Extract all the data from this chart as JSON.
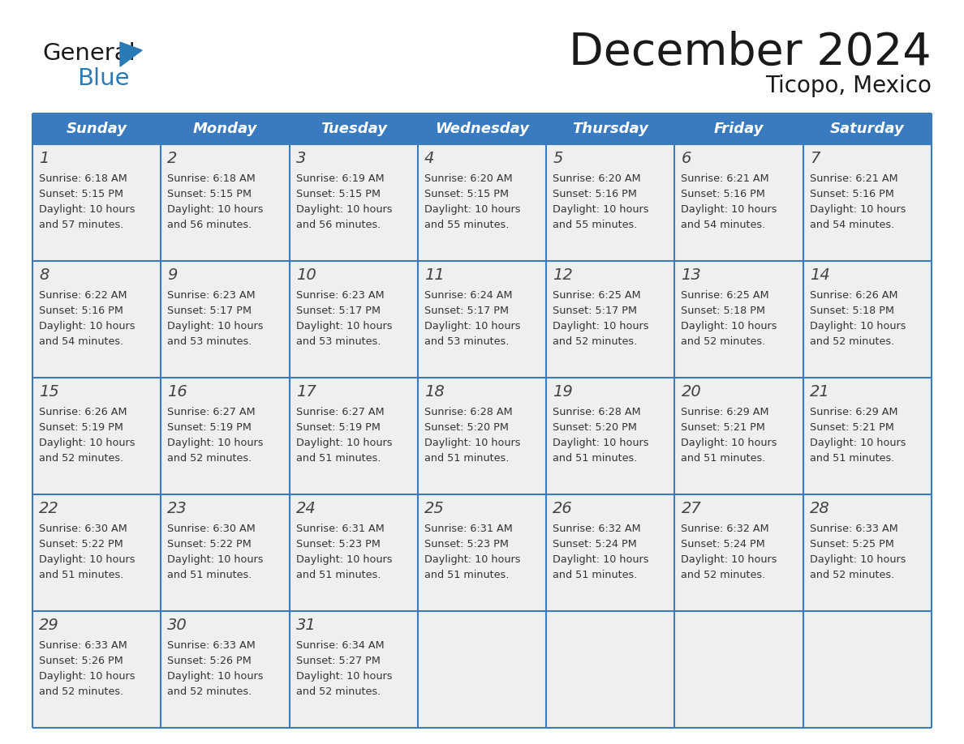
{
  "title": "December 2024",
  "subtitle": "Ticopo, Mexico",
  "header_color": "#3a7abf",
  "header_text_color": "#ffffff",
  "cell_bg_color": "#efefef",
  "border_color": "#3a7abf",
  "text_color": "#333333",
  "logo_black": "#1a1a1a",
  "logo_blue": "#2a7ab5",
  "days_of_week": [
    "Sunday",
    "Monday",
    "Tuesday",
    "Wednesday",
    "Thursday",
    "Friday",
    "Saturday"
  ],
  "weeks": [
    [
      {
        "day": 1,
        "sunrise": "6:18 AM",
        "sunset": "5:15 PM",
        "daylight": "10 hours and 57 minutes."
      },
      {
        "day": 2,
        "sunrise": "6:18 AM",
        "sunset": "5:15 PM",
        "daylight": "10 hours and 56 minutes."
      },
      {
        "day": 3,
        "sunrise": "6:19 AM",
        "sunset": "5:15 PM",
        "daylight": "10 hours and 56 minutes."
      },
      {
        "day": 4,
        "sunrise": "6:20 AM",
        "sunset": "5:15 PM",
        "daylight": "10 hours and 55 minutes."
      },
      {
        "day": 5,
        "sunrise": "6:20 AM",
        "sunset": "5:16 PM",
        "daylight": "10 hours and 55 minutes."
      },
      {
        "day": 6,
        "sunrise": "6:21 AM",
        "sunset": "5:16 PM",
        "daylight": "10 hours and 54 minutes."
      },
      {
        "day": 7,
        "sunrise": "6:21 AM",
        "sunset": "5:16 PM",
        "daylight": "10 hours and 54 minutes."
      }
    ],
    [
      {
        "day": 8,
        "sunrise": "6:22 AM",
        "sunset": "5:16 PM",
        "daylight": "10 hours and 54 minutes."
      },
      {
        "day": 9,
        "sunrise": "6:23 AM",
        "sunset": "5:17 PM",
        "daylight": "10 hours and 53 minutes."
      },
      {
        "day": 10,
        "sunrise": "6:23 AM",
        "sunset": "5:17 PM",
        "daylight": "10 hours and 53 minutes."
      },
      {
        "day": 11,
        "sunrise": "6:24 AM",
        "sunset": "5:17 PM",
        "daylight": "10 hours and 53 minutes."
      },
      {
        "day": 12,
        "sunrise": "6:25 AM",
        "sunset": "5:17 PM",
        "daylight": "10 hours and 52 minutes."
      },
      {
        "day": 13,
        "sunrise": "6:25 AM",
        "sunset": "5:18 PM",
        "daylight": "10 hours and 52 minutes."
      },
      {
        "day": 14,
        "sunrise": "6:26 AM",
        "sunset": "5:18 PM",
        "daylight": "10 hours and 52 minutes."
      }
    ],
    [
      {
        "day": 15,
        "sunrise": "6:26 AM",
        "sunset": "5:19 PM",
        "daylight": "10 hours and 52 minutes."
      },
      {
        "day": 16,
        "sunrise": "6:27 AM",
        "sunset": "5:19 PM",
        "daylight": "10 hours and 52 minutes."
      },
      {
        "day": 17,
        "sunrise": "6:27 AM",
        "sunset": "5:19 PM",
        "daylight": "10 hours and 51 minutes."
      },
      {
        "day": 18,
        "sunrise": "6:28 AM",
        "sunset": "5:20 PM",
        "daylight": "10 hours and 51 minutes."
      },
      {
        "day": 19,
        "sunrise": "6:28 AM",
        "sunset": "5:20 PM",
        "daylight": "10 hours and 51 minutes."
      },
      {
        "day": 20,
        "sunrise": "6:29 AM",
        "sunset": "5:21 PM",
        "daylight": "10 hours and 51 minutes."
      },
      {
        "day": 21,
        "sunrise": "6:29 AM",
        "sunset": "5:21 PM",
        "daylight": "10 hours and 51 minutes."
      }
    ],
    [
      {
        "day": 22,
        "sunrise": "6:30 AM",
        "sunset": "5:22 PM",
        "daylight": "10 hours and 51 minutes."
      },
      {
        "day": 23,
        "sunrise": "6:30 AM",
        "sunset": "5:22 PM",
        "daylight": "10 hours and 51 minutes."
      },
      {
        "day": 24,
        "sunrise": "6:31 AM",
        "sunset": "5:23 PM",
        "daylight": "10 hours and 51 minutes."
      },
      {
        "day": 25,
        "sunrise": "6:31 AM",
        "sunset": "5:23 PM",
        "daylight": "10 hours and 51 minutes."
      },
      {
        "day": 26,
        "sunrise": "6:32 AM",
        "sunset": "5:24 PM",
        "daylight": "10 hours and 51 minutes."
      },
      {
        "day": 27,
        "sunrise": "6:32 AM",
        "sunset": "5:24 PM",
        "daylight": "10 hours and 52 minutes."
      },
      {
        "day": 28,
        "sunrise": "6:33 AM",
        "sunset": "5:25 PM",
        "daylight": "10 hours and 52 minutes."
      }
    ],
    [
      {
        "day": 29,
        "sunrise": "6:33 AM",
        "sunset": "5:26 PM",
        "daylight": "10 hours and 52 minutes."
      },
      {
        "day": 30,
        "sunrise": "6:33 AM",
        "sunset": "5:26 PM",
        "daylight": "10 hours and 52 minutes."
      },
      {
        "day": 31,
        "sunrise": "6:34 AM",
        "sunset": "5:27 PM",
        "daylight": "10 hours and 52 minutes."
      },
      null,
      null,
      null,
      null
    ]
  ],
  "fig_width": 11.88,
  "fig_height": 9.18,
  "dpi": 100
}
